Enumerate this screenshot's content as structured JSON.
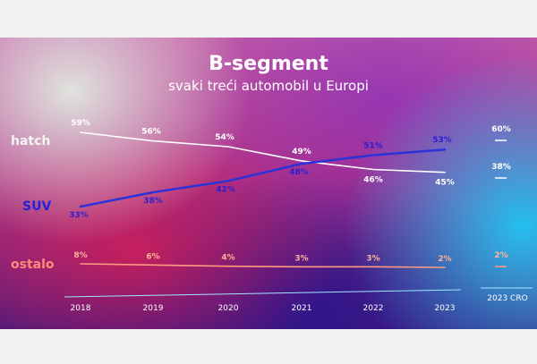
{
  "chart_data": {
    "type": "line",
    "title": "B-segment",
    "subtitle": "svaki treći automobil u Europi",
    "x": [
      "2018",
      "2019",
      "2020",
      "2021",
      "2022",
      "2023"
    ],
    "extra_category": "2023 CRO",
    "series": [
      {
        "name": "hatch",
        "values": [
          59,
          56,
          54,
          49,
          46,
          45
        ],
        "extra_value": 60,
        "labels": [
          "59%",
          "56%",
          "54%",
          "49%",
          "46%",
          "45%"
        ],
        "extra_label": "60%",
        "color": "#ffffff",
        "label_color": "#ffffff"
      },
      {
        "name": "SUV",
        "values": [
          33,
          38,
          42,
          48,
          51,
          53
        ],
        "extra_value": 38,
        "labels": [
          "33%",
          "38%",
          "42%",
          "48%",
          "51%",
          "53%"
        ],
        "extra_label": "38%",
        "color": "#2b32d8",
        "label_color": "#2a1fd0"
      },
      {
        "name": "ostalo",
        "values": [
          8,
          6,
          4,
          3,
          3,
          2
        ],
        "extra_value": 2,
        "labels": [
          "8%",
          "6%",
          "4%",
          "3%",
          "3%",
          "2%"
        ],
        "extra_label": "2%",
        "color": "#ff9a80",
        "label_color": "#ffb199"
      }
    ],
    "colors": {
      "accent_axis": "#9fe7ff",
      "hatch_name": "#f4f4f4",
      "suv_name": "#2323d6",
      "ostalo_name": "#ff8a7a"
    }
  }
}
